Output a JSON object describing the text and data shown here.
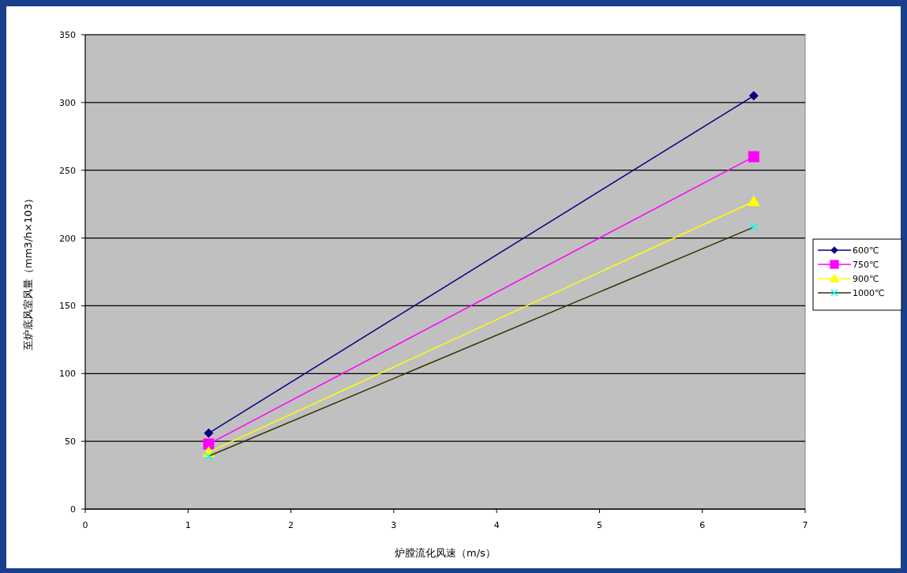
{
  "chart_data": {
    "type": "line",
    "xlabel": "炉膛流化风速（m/s）",
    "ylabel": "至炉底风室风量（mm3/h×103）",
    "x": [
      1.2,
      6.5
    ],
    "series": [
      {
        "name": "600℃",
        "color": "#000080",
        "marker": "diamond",
        "values": [
          56,
          305
        ]
      },
      {
        "name": "750℃",
        "color": "#ff00ff",
        "marker": "square",
        "values": [
          48,
          260
        ]
      },
      {
        "name": "900℃",
        "color": "#ffff00",
        "marker": "triangle",
        "values": [
          42,
          227
        ]
      },
      {
        "name": "1000℃",
        "color": "#333300",
        "colors": [
          "#00ffff",
          "#00ffff"
        ],
        "marker": "cross",
        "values": [
          39,
          208
        ]
      }
    ],
    "xlim": [
      0,
      7
    ],
    "xticks": [
      0,
      1,
      2,
      3,
      4,
      5,
      6,
      7
    ],
    "ylim": [
      0,
      350
    ],
    "yticks": [
      0,
      50,
      100,
      150,
      200,
      250,
      300,
      350
    ],
    "grid": "y",
    "legend": "right"
  }
}
